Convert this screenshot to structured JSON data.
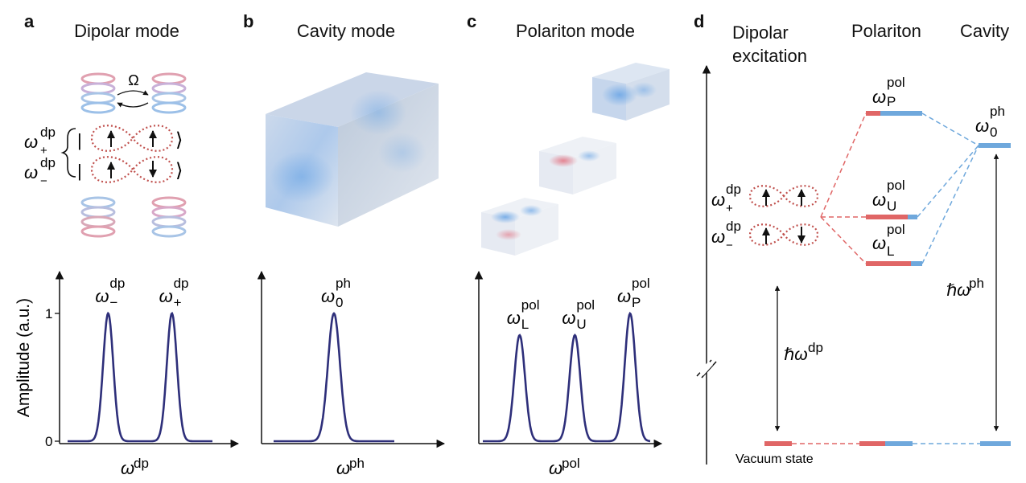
{
  "panels": {
    "a": {
      "letter": "a",
      "title": "Dipolar mode",
      "coupling": "Ω",
      "state_plus": "ω",
      "state_plus_sup": "dp",
      "state_plus_sub": "+",
      "state_minus": "ω",
      "state_minus_sup": "dp",
      "state_minus_sub": "−",
      "ket_open": "|",
      "ket_close": "⟩"
    },
    "b": {
      "letter": "b",
      "title": "Cavity mode"
    },
    "c": {
      "letter": "c",
      "title": "Polariton mode"
    },
    "d": {
      "letter": "d",
      "col1": [
        "Dipolar",
        "excitation"
      ],
      "col2": "Polariton",
      "col3": "Cavity",
      "levels": {
        "P": {
          "sym": "ω",
          "sup": "pol",
          "sub": "P"
        },
        "U": {
          "sym": "ω",
          "sup": "pol",
          "sub": "U"
        },
        "L": {
          "sym": "ω",
          "sup": "pol",
          "sub": "L"
        },
        "cav": {
          "sym": "ω",
          "sup": "ph",
          "sub": "0"
        },
        "dp_plus": {
          "sym": "ω",
          "sup": "dp",
          "sub": "+"
        },
        "dp_minus": {
          "sym": "ω",
          "sup": "dp",
          "sub": "−"
        }
      },
      "gap_dp": {
        "sym": "ℏω",
        "sup": "dp"
      },
      "gap_ph": {
        "sym": "ℏω",
        "sup": "ph"
      },
      "vacuum": "Vacuum state",
      "colors": {
        "dipolar": "#e06666",
        "cavity": "#6fa8dc"
      }
    }
  },
  "chart_data": [
    {
      "type": "line",
      "panel": "a",
      "ylabel": "Amplitude (a.u.)",
      "xlabel": "ω",
      "xlabel_sup": "dp",
      "yticks": [
        "0",
        "1"
      ],
      "ylim": [
        0,
        1.2
      ],
      "peaks": [
        {
          "center": 0.28,
          "height": 1.0,
          "label": "ω",
          "sup": "dp",
          "sub": "−"
        },
        {
          "center": 0.72,
          "height": 1.0,
          "label": "ω",
          "sup": "dp",
          "sub": "+"
        }
      ]
    },
    {
      "type": "line",
      "panel": "b",
      "xlabel": "ω",
      "xlabel_sup": "ph",
      "ylim": [
        0,
        1.2
      ],
      "peaks": [
        {
          "center": 0.5,
          "height": 1.0,
          "label": "ω",
          "sup": "ph",
          "sub": "0"
        }
      ]
    },
    {
      "type": "line",
      "panel": "c",
      "xlabel": "ω",
      "xlabel_sup": "pol",
      "ylim": [
        0,
        1.2
      ],
      "peaks": [
        {
          "center": 0.22,
          "height": 0.83,
          "label": "ω",
          "sup": "pol",
          "sub": "L"
        },
        {
          "center": 0.55,
          "height": 0.83,
          "label": "ω",
          "sup": "pol",
          "sub": "U"
        },
        {
          "center": 0.88,
          "height": 1.0,
          "label": "ω",
          "sup": "pol",
          "sub": "P"
        }
      ]
    }
  ]
}
